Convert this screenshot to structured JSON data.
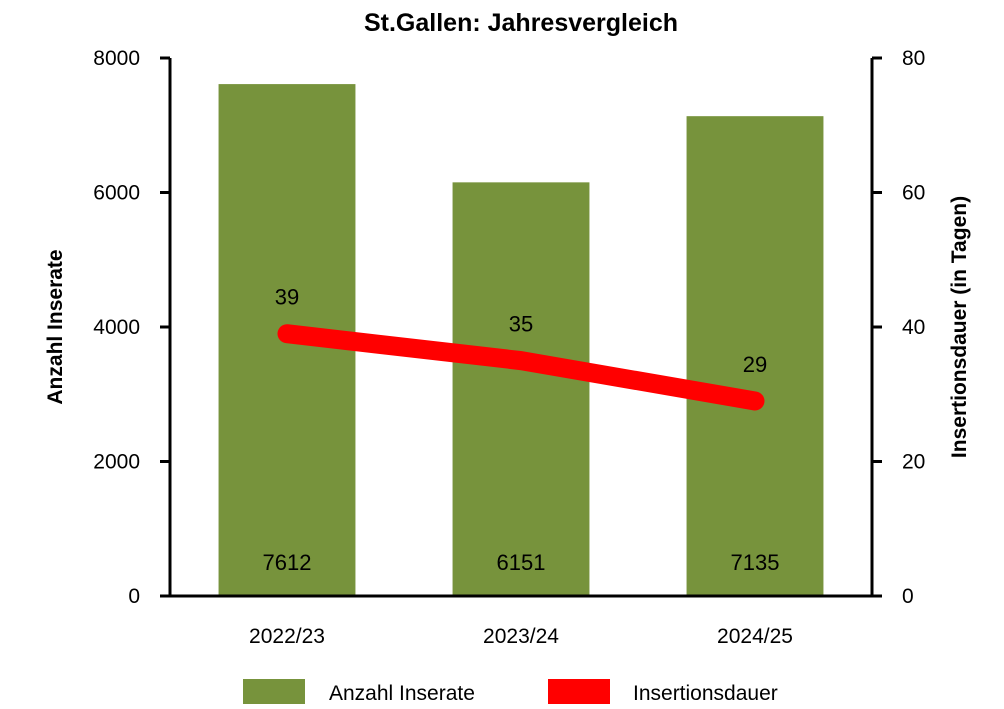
{
  "chart_data": {
    "type": "bar",
    "title": "St.Gallen: Jahresvergleich",
    "categories": [
      "2022/23",
      "2023/24",
      "2024/25"
    ],
    "ylabel": "Anzahl Inserate",
    "y2label": "Insertionsdauer (in Tagen)",
    "ylim": [
      0,
      8000
    ],
    "yticks": [
      0,
      2000,
      4000,
      6000,
      8000
    ],
    "y2lim": [
      0,
      80
    ],
    "y2ticks": [
      0,
      20,
      40,
      60,
      80
    ],
    "grid": false,
    "legend_position": "bottom",
    "series": [
      {
        "name": "Anzahl Inserate",
        "type": "bar",
        "axis": "left",
        "color": "#77933c",
        "values": [
          7612,
          6151,
          7135
        ]
      },
      {
        "name": "Insertionsdauer",
        "type": "line",
        "axis": "right",
        "color": "#ff0000",
        "values": [
          39,
          35,
          29
        ]
      }
    ]
  }
}
